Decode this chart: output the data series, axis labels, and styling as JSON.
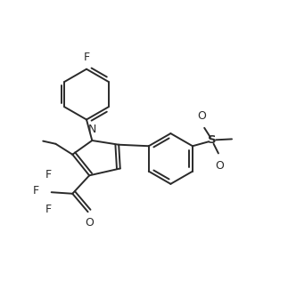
{
  "background_color": "#ffffff",
  "line_color": "#2a2a2a",
  "line_width": 1.4,
  "dbo": 0.012,
  "figsize": [
    3.23,
    3.16
  ],
  "dpi": 100,
  "xlim": [
    0.0,
    1.0
  ],
  "ylim": [
    0.0,
    1.0
  ]
}
